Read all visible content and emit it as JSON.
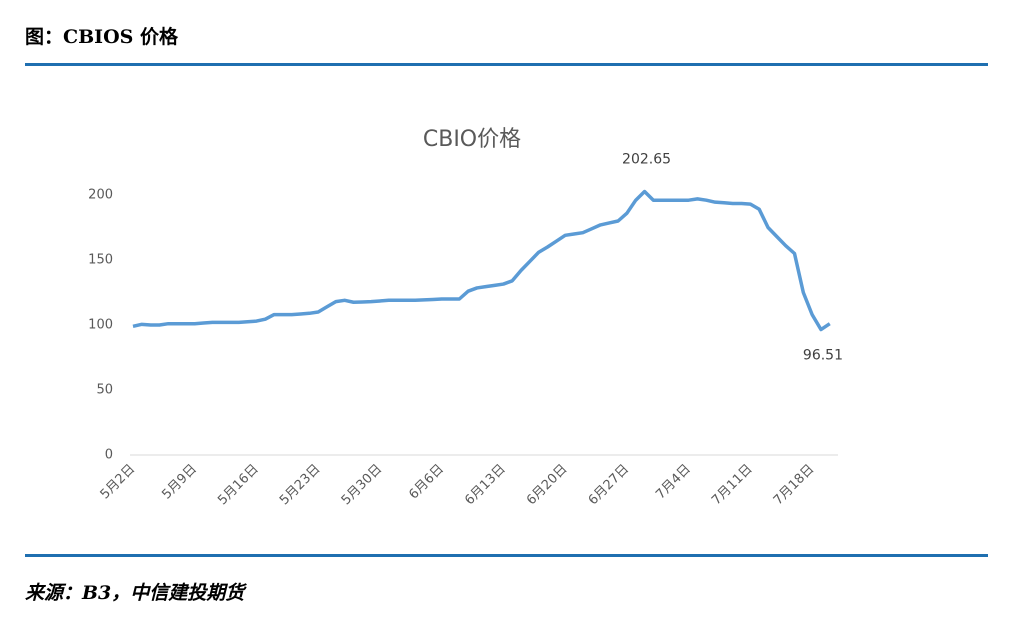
{
  "header": "图：CBIOS 价格",
  "source": "来源：B3，中信建投期货",
  "chart_data": {
    "type": "line",
    "title": "CBIO价格",
    "color": "#5b9bd5",
    "categories": [
      "5月2日",
      null,
      null,
      null,
      null,
      null,
      null,
      "5月9日",
      null,
      null,
      null,
      null,
      null,
      null,
      "5月16日",
      null,
      null,
      null,
      null,
      null,
      null,
      "5月23日",
      null,
      null,
      null,
      null,
      null,
      null,
      "5月30日",
      null,
      null,
      null,
      null,
      null,
      null,
      "6月6日",
      null,
      null,
      null,
      null,
      null,
      null,
      "6月13日",
      null,
      null,
      null,
      null,
      null,
      null,
      "6月20日",
      null,
      null,
      null,
      null,
      null,
      null,
      "6月27日",
      null,
      null,
      null,
      null,
      null,
      null,
      "7月4日",
      null,
      null,
      null,
      null,
      null,
      null,
      "7月11日",
      null,
      null,
      null,
      null,
      null,
      null,
      "7月18日",
      null,
      null
    ],
    "values": [
      99,
      100.5,
      100,
      100,
      101,
      101,
      101,
      101,
      101.5,
      102,
      102,
      102,
      102,
      102.5,
      103,
      104.5,
      108,
      108,
      108,
      108.5,
      109,
      110,
      114,
      118,
      119,
      117.5,
      117.7,
      118,
      118.5,
      119,
      119,
      119,
      119,
      119.3,
      119.6,
      120,
      120,
      120,
      126,
      128.5,
      129.5,
      130.5,
      131.5,
      134,
      142,
      149,
      156,
      160,
      164.5,
      169,
      170,
      171,
      174,
      177,
      178.5,
      180,
      186,
      196,
      202.65,
      196,
      196,
      196,
      196,
      196,
      197,
      196,
      194.5,
      194,
      193.5,
      193.5,
      193,
      189,
      175,
      168,
      161,
      155,
      125,
      108,
      96.51,
      101
    ],
    "value_labels": [
      null,
      null,
      null,
      null,
      null,
      null,
      null,
      null,
      null,
      null,
      null,
      null,
      null,
      null,
      null,
      null,
      null,
      null,
      null,
      null,
      null,
      null,
      null,
      null,
      null,
      null,
      null,
      null,
      null,
      null,
      null,
      null,
      null,
      null,
      null,
      null,
      null,
      null,
      null,
      null,
      null,
      null,
      null,
      null,
      null,
      null,
      null,
      null,
      null,
      null,
      null,
      null,
      null,
      null,
      null,
      null,
      null,
      null,
      "202.65",
      null,
      null,
      null,
      null,
      null,
      null,
      null,
      null,
      null,
      null,
      null,
      null,
      null,
      null,
      null,
      null,
      null,
      null,
      null,
      "96.51",
      null
    ],
    "ylim": [
      0,
      200
    ],
    "yticks": [
      0,
      50,
      100,
      150,
      200
    ]
  }
}
